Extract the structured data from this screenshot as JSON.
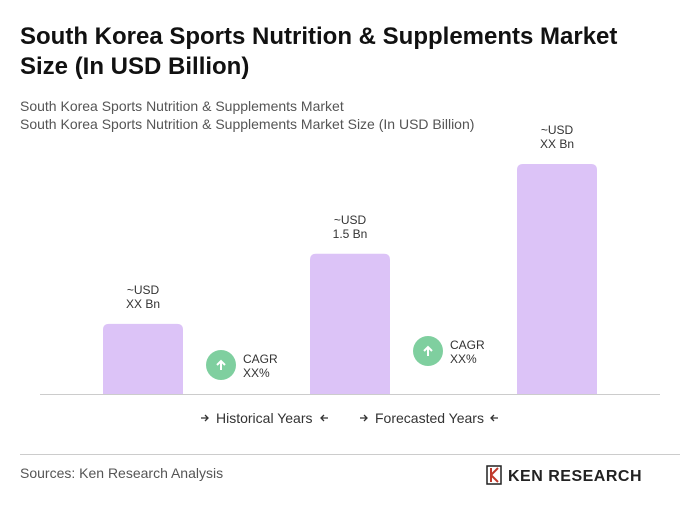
{
  "chart_data": {
    "type": "bar",
    "title": "South Korea Sports Nutrition & Supplements Market Size (In USD Billion)",
    "subtitle": [
      "South Korea Sports Nutrition & Supplements Market",
      "South Korea Sports Nutrition & Supplements Market Size (In USD Billion)"
    ],
    "categories": [
      null,
      null,
      null
    ],
    "values": [
      0.75,
      1.5,
      2.46
    ],
    "value_labels": [
      [
        "~USD",
        "XX Bn"
      ],
      [
        "~USD",
        "1.5 Bn"
      ],
      [
        "~USD",
        "XX Bn"
      ]
    ],
    "color": "#dcc3f7",
    "annotations": [
      [
        "CAGR",
        "XX%"
      ],
      [
        "CAGR",
        "XX%"
      ]
    ],
    "periods": [
      "Historical Years",
      "Forecasted Years"
    ],
    "source": "Sources: Ken Research Analysis",
    "logo": "KEN RESEARCH"
  }
}
